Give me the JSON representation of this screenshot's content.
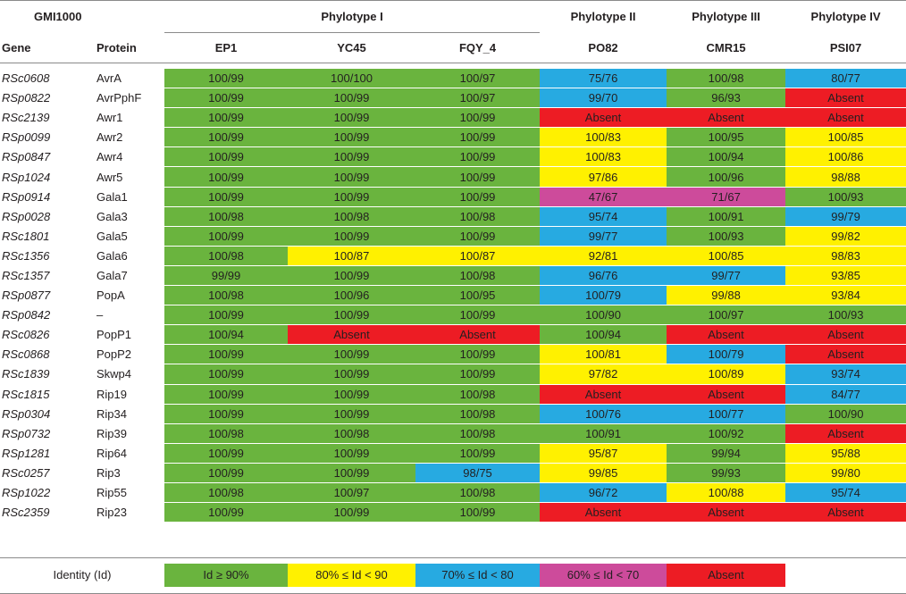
{
  "header": {
    "gmi": "GMI1000",
    "phylotype1": "Phylotype I",
    "phylotype2": "Phylotype II",
    "phylotype3": "Phylotype III",
    "phylotype4": "Phylotype IV",
    "gene": "Gene",
    "protein": "Protein",
    "strains": [
      "EP1",
      "YC45",
      "FQY_4",
      "PO82",
      "CMR15",
      "PSI07"
    ]
  },
  "colors": {
    "g": "#6ab43e",
    "y": "#fff100",
    "b": "#27aae1",
    "p": "#cd4b9b",
    "r": "#ed1c24"
  },
  "rows": [
    {
      "gene": "RSc0608",
      "protein": "AvrA",
      "cells": [
        [
          "100/99",
          "g"
        ],
        [
          "100/100",
          "g"
        ],
        [
          "100/97",
          "g"
        ],
        [
          "75/76",
          "b"
        ],
        [
          "100/98",
          "g"
        ],
        [
          "80/77",
          "b"
        ]
      ]
    },
    {
      "gene": "RSp0822",
      "protein": "AvrPphF",
      "cells": [
        [
          "100/99",
          "g"
        ],
        [
          "100/99",
          "g"
        ],
        [
          "100/97",
          "g"
        ],
        [
          "99/70",
          "b"
        ],
        [
          "96/93",
          "g"
        ],
        [
          "Absent",
          "r"
        ]
      ]
    },
    {
      "gene": "RSc2139",
      "protein": "Awr1",
      "cells": [
        [
          "100/99",
          "g"
        ],
        [
          "100/99",
          "g"
        ],
        [
          "100/99",
          "g"
        ],
        [
          "Absent",
          "r"
        ],
        [
          "Absent",
          "r"
        ],
        [
          "Absent",
          "r"
        ]
      ]
    },
    {
      "gene": "RSp0099",
      "protein": "Awr2",
      "cells": [
        [
          "100/99",
          "g"
        ],
        [
          "100/99",
          "g"
        ],
        [
          "100/99",
          "g"
        ],
        [
          "100/83",
          "y"
        ],
        [
          "100/95",
          "g"
        ],
        [
          "100/85",
          "y"
        ]
      ]
    },
    {
      "gene": "RSp0847",
      "protein": "Awr4",
      "cells": [
        [
          "100/99",
          "g"
        ],
        [
          "100/99",
          "g"
        ],
        [
          "100/99",
          "g"
        ],
        [
          "100/83",
          "y"
        ],
        [
          "100/94",
          "g"
        ],
        [
          "100/86",
          "y"
        ]
      ]
    },
    {
      "gene": "RSp1024",
      "protein": "Awr5",
      "cells": [
        [
          "100/99",
          "g"
        ],
        [
          "100/99",
          "g"
        ],
        [
          "100/99",
          "g"
        ],
        [
          "97/86",
          "y"
        ],
        [
          "100/96",
          "g"
        ],
        [
          "98/88",
          "y"
        ]
      ]
    },
    {
      "gene": "RSp0914",
      "protein": "Gala1",
      "cells": [
        [
          "100/99",
          "g"
        ],
        [
          "100/99",
          "g"
        ],
        [
          "100/99",
          "g"
        ],
        [
          "47/67",
          "p"
        ],
        [
          "71/67",
          "p"
        ],
        [
          "100/93",
          "g"
        ]
      ]
    },
    {
      "gene": "RSp0028",
      "protein": "Gala3",
      "cells": [
        [
          "100/98",
          "g"
        ],
        [
          "100/98",
          "g"
        ],
        [
          "100/98",
          "g"
        ],
        [
          "95/74",
          "b"
        ],
        [
          "100/91",
          "g"
        ],
        [
          "99/79",
          "b"
        ]
      ]
    },
    {
      "gene": "RSc1801",
      "protein": "Gala5",
      "cells": [
        [
          "100/99",
          "g"
        ],
        [
          "100/99",
          "g"
        ],
        [
          "100/99",
          "g"
        ],
        [
          "99/77",
          "b"
        ],
        [
          "100/93",
          "g"
        ],
        [
          "99/82",
          "y"
        ]
      ]
    },
    {
      "gene": "RSc1356",
      "protein": "Gala6",
      "cells": [
        [
          "100/98",
          "g"
        ],
        [
          "100/87",
          "y"
        ],
        [
          "100/87",
          "y"
        ],
        [
          "92/81",
          "y"
        ],
        [
          "100/85",
          "y"
        ],
        [
          "98/83",
          "y"
        ]
      ]
    },
    {
      "gene": "RSc1357",
      "protein": "Gala7",
      "cells": [
        [
          "99/99",
          "g"
        ],
        [
          "100/99",
          "g"
        ],
        [
          "100/98",
          "g"
        ],
        [
          "96/76",
          "b"
        ],
        [
          "99/77",
          "b"
        ],
        [
          "93/85",
          "y"
        ]
      ]
    },
    {
      "gene": "RSp0877",
      "protein": "PopA",
      "cells": [
        [
          "100/98",
          "g"
        ],
        [
          "100/96",
          "g"
        ],
        [
          "100/95",
          "g"
        ],
        [
          "100/79",
          "b"
        ],
        [
          "99/88",
          "y"
        ],
        [
          "93/84",
          "y"
        ]
      ]
    },
    {
      "gene": "RSp0842",
      "protein": "–",
      "cells": [
        [
          "100/99",
          "g"
        ],
        [
          "100/99",
          "g"
        ],
        [
          "100/99",
          "g"
        ],
        [
          "100/90",
          "g"
        ],
        [
          "100/97",
          "g"
        ],
        [
          "100/93",
          "g"
        ]
      ]
    },
    {
      "gene": "RSc0826",
      "protein": "PopP1",
      "cells": [
        [
          "100/94",
          "g"
        ],
        [
          "Absent",
          "r"
        ],
        [
          "Absent",
          "r"
        ],
        [
          "100/94",
          "g"
        ],
        [
          "Absent",
          "r"
        ],
        [
          "Absent",
          "r"
        ]
      ]
    },
    {
      "gene": "RSc0868",
      "protein": "PopP2",
      "cells": [
        [
          "100/99",
          "g"
        ],
        [
          "100/99",
          "g"
        ],
        [
          "100/99",
          "g"
        ],
        [
          "100/81",
          "y"
        ],
        [
          "100/79",
          "b"
        ],
        [
          "Absent",
          "r"
        ]
      ]
    },
    {
      "gene": "RSc1839",
      "protein": "Skwp4",
      "cells": [
        [
          "100/99",
          "g"
        ],
        [
          "100/99",
          "g"
        ],
        [
          "100/99",
          "g"
        ],
        [
          "97/82",
          "y"
        ],
        [
          "100/89",
          "y"
        ],
        [
          "93/74",
          "b"
        ]
      ]
    },
    {
      "gene": "RSc1815",
      "protein": "Rip19",
      "cells": [
        [
          "100/99",
          "g"
        ],
        [
          "100/99",
          "g"
        ],
        [
          "100/98",
          "g"
        ],
        [
          "Absent",
          "r"
        ],
        [
          "Absent",
          "r"
        ],
        [
          "84/77",
          "b"
        ]
      ]
    },
    {
      "gene": "RSp0304",
      "protein": "Rip34",
      "cells": [
        [
          "100/99",
          "g"
        ],
        [
          "100/99",
          "g"
        ],
        [
          "100/98",
          "g"
        ],
        [
          "100/76",
          "b"
        ],
        [
          "100/77",
          "b"
        ],
        [
          "100/90",
          "g"
        ]
      ]
    },
    {
      "gene": "RSp0732",
      "protein": "Rip39",
      "cells": [
        [
          "100/98",
          "g"
        ],
        [
          "100/98",
          "g"
        ],
        [
          "100/98",
          "g"
        ],
        [
          "100/91",
          "g"
        ],
        [
          "100/92",
          "g"
        ],
        [
          "Absent",
          "r"
        ]
      ]
    },
    {
      "gene": "RSp1281",
      "protein": "Rip64",
      "cells": [
        [
          "100/99",
          "g"
        ],
        [
          "100/99",
          "g"
        ],
        [
          "100/99",
          "g"
        ],
        [
          "95/87",
          "y"
        ],
        [
          "99/94",
          "g"
        ],
        [
          "95/88",
          "y"
        ]
      ]
    },
    {
      "gene": "RSc0257",
      "protein": "Rip3",
      "cells": [
        [
          "100/99",
          "g"
        ],
        [
          "100/99",
          "g"
        ],
        [
          "98/75",
          "b"
        ],
        [
          "99/85",
          "y"
        ],
        [
          "99/93",
          "g"
        ],
        [
          "99/80",
          "y"
        ]
      ]
    },
    {
      "gene": "RSp1022",
      "protein": "Rip55",
      "cells": [
        [
          "100/98",
          "g"
        ],
        [
          "100/97",
          "g"
        ],
        [
          "100/98",
          "g"
        ],
        [
          "96/72",
          "b"
        ],
        [
          "100/88",
          "y"
        ],
        [
          "95/74",
          "b"
        ]
      ]
    },
    {
      "gene": "RSc2359",
      "protein": "Rip23",
      "cells": [
        [
          "100/99",
          "g"
        ],
        [
          "100/99",
          "g"
        ],
        [
          "100/99",
          "g"
        ],
        [
          "Absent",
          "r"
        ],
        [
          "Absent",
          "r"
        ],
        [
          "Absent",
          "r"
        ]
      ]
    }
  ],
  "legend": {
    "label": "Identity (Id)",
    "items": [
      {
        "text": "Id ≥ 90%",
        "color": "g"
      },
      {
        "text": "80% ≤ Id < 90",
        "color": "y"
      },
      {
        "text": "70% ≤ Id < 80",
        "color": "b"
      },
      {
        "text": "60% ≤ Id < 70",
        "color": "p"
      },
      {
        "text": "Absent",
        "color": "r"
      }
    ]
  }
}
